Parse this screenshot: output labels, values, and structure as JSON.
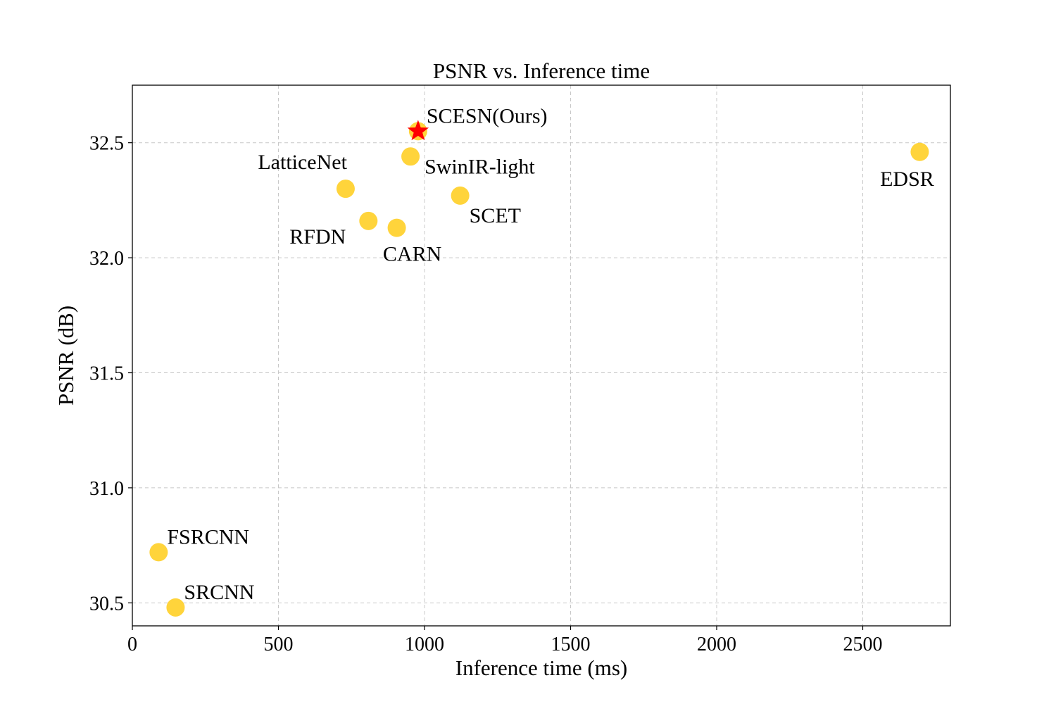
{
  "chart_data": {
    "type": "scatter",
    "title": "PSNR vs. Inference time",
    "xlabel": "Inference time (ms)",
    "ylabel": "PSNR (dB)",
    "xlim": [
      0,
      2800
    ],
    "ylim": [
      30.4,
      32.75
    ],
    "xticks": [
      0,
      500,
      1000,
      1500,
      2000,
      2500
    ],
    "yticks": [
      30.5,
      31.0,
      31.5,
      32.0,
      32.5
    ],
    "xtick_labels": [
      "0",
      "500",
      "1000",
      "1500",
      "2000",
      "2500"
    ],
    "ytick_labels": [
      "30.5",
      "31.0",
      "31.5",
      "32.0",
      "32.5"
    ],
    "grid": true,
    "marker_color": "#FFD43B",
    "highlight_color": "#FF0000",
    "points": [
      {
        "label": "SCESN(Ours)",
        "x": 978,
        "y": 32.55,
        "marker": "star",
        "label_anchor": "above-right"
      },
      {
        "label": "SwinIR-light",
        "x": 952,
        "y": 32.44,
        "marker": "circle",
        "label_anchor": "below-right"
      },
      {
        "label": "LatticeNet",
        "x": 730,
        "y": 32.3,
        "marker": "circle",
        "label_anchor": "above-left"
      },
      {
        "label": "RFDN",
        "x": 808,
        "y": 32.16,
        "marker": "circle",
        "label_anchor": "below-left"
      },
      {
        "label": "CARN",
        "x": 905,
        "y": 32.13,
        "marker": "circle",
        "label_anchor": "below"
      },
      {
        "label": "SCET",
        "x": 1122,
        "y": 32.27,
        "marker": "circle",
        "label_anchor": "below-right"
      },
      {
        "label": "EDSR",
        "x": 2695,
        "y": 32.46,
        "marker": "circle",
        "label_anchor": "below"
      },
      {
        "label": "FSRCNN",
        "x": 90,
        "y": 30.72,
        "marker": "circle",
        "label_anchor": "above-right"
      },
      {
        "label": "SRCNN",
        "x": 148,
        "y": 30.48,
        "marker": "circle",
        "label_anchor": "above-right"
      }
    ]
  }
}
